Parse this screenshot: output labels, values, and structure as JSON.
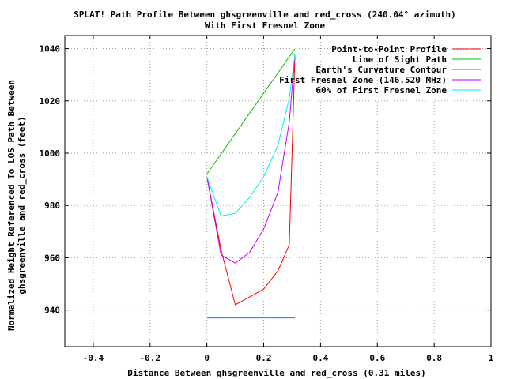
{
  "chart_data": {
    "type": "line",
    "title": "SPLAT! Path Profile Between ghsgreenville and red_cross (240.04° azimuth)",
    "subtitle": "With First Fresnel Zone",
    "xlabel": "Distance Between ghsgreenville and red_cross (0.31 miles)",
    "ylabel_line1": "Normalized Height Referenced To LOS Path Between",
    "ylabel_line2": "ghsgreenville and red_cross (feet)",
    "xlim": [
      -0.5,
      1.0
    ],
    "ylim": [
      926,
      1045
    ],
    "xticks": [
      -0.4,
      -0.2,
      0,
      0.2,
      0.4,
      0.6,
      0.8,
      1
    ],
    "xtick_labels": [
      "-0.4",
      "-0.2",
      "0",
      "0.2",
      "0.4",
      "0.6",
      "0.8",
      "1"
    ],
    "yticks": [
      940,
      960,
      980,
      1000,
      1020,
      1040
    ],
    "ytick_labels": [
      "940",
      "960",
      "980",
      "1000",
      "1020",
      "1040"
    ],
    "grid": true,
    "legend_position": "top-right",
    "series": [
      {
        "name": "Point-to-Point Profile",
        "color": "#ff0000",
        "x": [
          0,
          0.05,
          0.1,
          0.2,
          0.25,
          0.29,
          0.31
        ],
        "y": [
          991,
          963,
          942,
          948,
          955,
          965,
          1038
        ]
      },
      {
        "name": "Line of Sight Path",
        "color": "#00c000",
        "x": [
          0,
          0.31
        ],
        "y": [
          992,
          1040
        ]
      },
      {
        "name": "Earth's Curvature Contour",
        "color": "#0080ff",
        "x": [
          0,
          0.31
        ],
        "y": [
          937,
          937
        ]
      },
      {
        "name": "First Fresnel Zone (146.520 MHz)",
        "color": "#c000ff",
        "x": [
          0,
          0.05,
          0.1,
          0.15,
          0.2,
          0.25,
          0.29,
          0.31
        ],
        "y": [
          991,
          961,
          958,
          962,
          971,
          985,
          1012,
          1038
        ]
      },
      {
        "name": "60% of First Fresnel Zone",
        "color": "#00eeee",
        "x": [
          0,
          0.05,
          0.1,
          0.15,
          0.2,
          0.25,
          0.29,
          0.31
        ],
        "y": [
          991,
          976,
          977,
          983,
          991,
          1003,
          1021,
          1038
        ]
      }
    ]
  }
}
